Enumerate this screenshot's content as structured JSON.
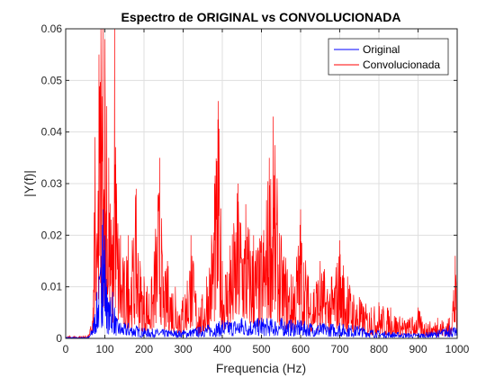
{
  "chart_data": {
    "type": "line",
    "title": "Espectro de ORIGINAL vs CONVOLUCIONADA",
    "xlabel": "Frequencia (Hz)",
    "ylabel": "|Y(f)|",
    "xlim": [
      0,
      1000
    ],
    "ylim": [
      0,
      0.06
    ],
    "xticks": [
      0,
      100,
      200,
      300,
      400,
      500,
      600,
      700,
      800,
      900,
      1000
    ],
    "yticks": [
      0,
      0.01,
      0.02,
      0.03,
      0.04,
      0.05,
      0.06
    ],
    "x_tick_labels": [
      "0",
      "100",
      "200",
      "300",
      "400",
      "500",
      "600",
      "700",
      "800",
      "900",
      "1000"
    ],
    "y_tick_labels": [
      "0",
      "0.01",
      "0.02",
      "0.03",
      "0.04",
      "0.05",
      "0.06"
    ],
    "grid": true,
    "legend_position": "top-right",
    "series": [
      {
        "name": "Original",
        "color": "#0000ff",
        "x": [
          0,
          40,
          60,
          70,
          80,
          85,
          90,
          93,
          96,
          100,
          105,
          110,
          115,
          120,
          125,
          130,
          140,
          160,
          180,
          200,
          250,
          300,
          350,
          400,
          450,
          500,
          550,
          600,
          650,
          700,
          750,
          800,
          850,
          900,
          950,
          980,
          1000
        ],
        "y": [
          0.0003,
          0.0002,
          0.0004,
          0.003,
          0.009,
          0.012,
          0.016,
          0.022,
          0.025,
          0.02,
          0.01,
          0.007,
          0.008,
          0.009,
          0.006,
          0.004,
          0.003,
          0.003,
          0.0025,
          0.002,
          0.0018,
          0.0016,
          0.0025,
          0.0035,
          0.004,
          0.004,
          0.004,
          0.0035,
          0.003,
          0.003,
          0.0025,
          0.0015,
          0.0012,
          0.001,
          0.0015,
          0.0025,
          0.002
        ]
      },
      {
        "name": "Convolucionada",
        "color": "#ff0000",
        "x": [
          0,
          40,
          60,
          70,
          75,
          80,
          85,
          90,
          95,
          100,
          105,
          110,
          120,
          125,
          130,
          140,
          150,
          160,
          170,
          180,
          190,
          200,
          220,
          240,
          250,
          260,
          280,
          300,
          320,
          340,
          360,
          380,
          390,
          400,
          420,
          440,
          460,
          480,
          500,
          520,
          530,
          550,
          580,
          600,
          620,
          650,
          680,
          700,
          720,
          750,
          780,
          800,
          830,
          860,
          880,
          900,
          920,
          950,
          980,
          995,
          1000
        ],
        "y": [
          0.0005,
          0.0004,
          0.0008,
          0.006,
          0.039,
          0.02,
          0.055,
          0.06,
          0.06,
          0.058,
          0.045,
          0.035,
          0.02,
          0.061,
          0.03,
          0.02,
          0.015,
          0.02,
          0.019,
          0.029,
          0.015,
          0.012,
          0.012,
          0.035,
          0.012,
          0.015,
          0.01,
          0.008,
          0.02,
          0.006,
          0.012,
          0.03,
          0.046,
          0.015,
          0.018,
          0.03,
          0.026,
          0.02,
          0.02,
          0.035,
          0.043,
          0.02,
          0.012,
          0.025,
          0.012,
          0.015,
          0.012,
          0.019,
          0.012,
          0.008,
          0.006,
          0.007,
          0.006,
          0.004,
          0.004,
          0.006,
          0.003,
          0.004,
          0.004,
          0.016,
          0.005
        ]
      }
    ]
  }
}
